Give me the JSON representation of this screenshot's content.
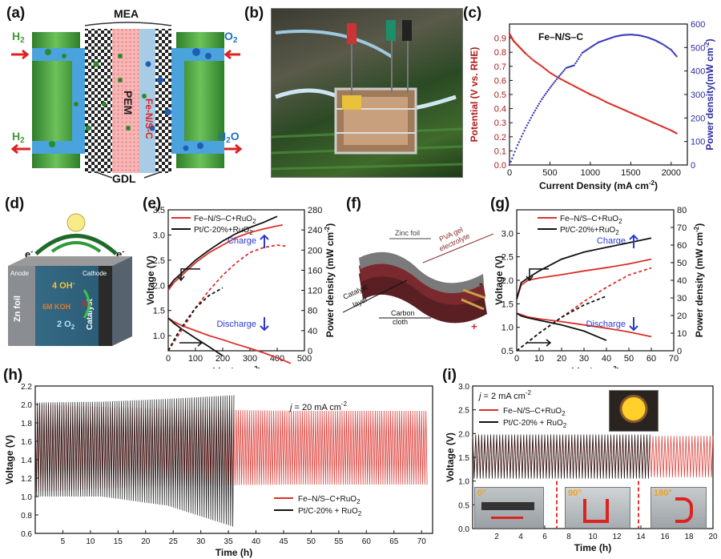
{
  "panels": {
    "a": {
      "label": "(a)",
      "mea": "MEA",
      "pem": "PEM",
      "catalyst": "Fe-N/S-C",
      "gdl": "GDL",
      "h2_in": "H",
      "h2_in_sub": "2",
      "h2_out": "H",
      "h2_out_sub": "2",
      "o2": "O",
      "o2_sub": "2",
      "h2o": "H",
      "h2o_sub": "2",
      "h2o_o": "O",
      "colors": {
        "green": "#3f9a34",
        "blue": "#4aa3dd",
        "pem": "#f29a9a",
        "red": "#d22"
      }
    },
    "b": {
      "label": "(b)"
    },
    "c": {
      "label": "(c)"
    },
    "d": {
      "label": "(d)",
      "anode": "Anode",
      "cathode": "Cathode",
      "zn_foil": "Zn foil",
      "oh": "4 OH",
      "oh_sup": "-",
      "koh": "6M KOH",
      "e_sym": "4e",
      "e_sym_sup": "-",
      "o2": "2 O",
      "o2_sub": "2",
      "catalyst": "Catalyst",
      "e_left": "e",
      "e_left_sup": "-",
      "e_right": "e",
      "e_right_sup": "-"
    },
    "e": {
      "label": "(e)"
    },
    "f": {
      "label": "(f)",
      "zinc_foil": "Zinc foil",
      "pva1": "PVA gel",
      "pva2": "electrolyte",
      "cat1": "Catalyst",
      "cat2": "layer",
      "carbon1": "Carbon",
      "carbon2": "cloth",
      "minus": "-",
      "plus": "+"
    },
    "g": {
      "label": "(g)"
    },
    "h": {
      "label": "(h)"
    },
    "i": {
      "label": "(i)",
      "angle0": "0°",
      "angle90": "90°",
      "angle180": "180°"
    }
  },
  "chart_data": [
    {
      "id": "c",
      "type": "line",
      "annotation": "Fe–N/S–C",
      "xlabel": "Current Density (mA cm",
      "xlabel_sup": "-2",
      "xlabel_end": ")",
      "ylabel": "Potential (V vs. RHE)",
      "y2label": "Power density(mW cm",
      "y2label_sup": "-2",
      "y2label_end": ")",
      "xlim": [
        0,
        2200
      ],
      "xticks": [
        0,
        500,
        1000,
        1500,
        2000
      ],
      "ylim": [
        0,
        1.0
      ],
      "yticks": [
        0.0,
        0.1,
        0.2,
        0.3,
        0.4,
        0.5,
        0.6,
        0.7,
        0.8,
        0.9
      ],
      "y2lim": [
        0,
        600
      ],
      "y2ticks": [
        0,
        100,
        200,
        300,
        400,
        500,
        600
      ],
      "series": [
        {
          "axis": "left",
          "color": "#d9302a",
          "x": [
            0,
            20,
            50,
            100,
            150,
            200,
            300,
            400,
            500,
            600,
            700,
            800,
            900,
            1000,
            1100,
            1200,
            1300,
            1400,
            1500,
            1600,
            1700,
            1800,
            1900,
            2000,
            2080
          ],
          "y": [
            0.93,
            0.91,
            0.88,
            0.85,
            0.82,
            0.79,
            0.74,
            0.7,
            0.655,
            0.62,
            0.59,
            0.56,
            0.53,
            0.5,
            0.475,
            0.445,
            0.42,
            0.395,
            0.37,
            0.345,
            0.32,
            0.295,
            0.27,
            0.245,
            0.22
          ]
        },
        {
          "axis": "right",
          "color": "#3a3bb8",
          "x": [
            0,
            100,
            200,
            300,
            400,
            500,
            600,
            700,
            800,
            900,
            1000,
            1100,
            1200,
            1300,
            1400,
            1500,
            1600,
            1700,
            1800,
            1900,
            2000,
            2080
          ],
          "y": [
            0,
            85,
            158,
            222,
            280,
            328,
            372,
            413,
            424,
            477,
            500,
            522,
            534,
            546,
            553,
            555,
            552,
            544,
            531,
            513,
            490,
            457
          ]
        }
      ]
    },
    {
      "id": "e",
      "type": "line",
      "xlabel": "j",
      "xlabel_unit": " (mA cm",
      "xlabel_sup": "-2",
      "xlabel_end": ")",
      "ylabel": "Voltage (V)",
      "y2label": "Power density (mW cm",
      "y2label_sup": "-2",
      "y2label_end": ")",
      "xlim": [
        0,
        500
      ],
      "xticks": [
        0,
        100,
        200,
        300,
        400,
        500
      ],
      "ylim": [
        0.7,
        3.5
      ],
      "yticks": [
        1.0,
        1.5,
        2.0,
        2.5,
        3.0,
        3.5
      ],
      "y2lim": [
        0,
        280
      ],
      "y2ticks": [
        0,
        40,
        80,
        120,
        160,
        200,
        240,
        280
      ],
      "legend": [
        "Fe–N/S–C+RuO",
        "Pt/C-20%+RuO"
      ],
      "legend_sub": "2",
      "charge_label": "Charge",
      "discharge_label": "Discharge",
      "series": [
        {
          "name": "Fe–N/S–C+RuO2",
          "color": "#d9302a",
          "dash": false,
          "x": [
            0,
            20,
            50,
            100,
            150,
            200,
            250,
            300,
            350,
            400,
            420
          ],
          "y": [
            1.9,
            2.05,
            2.2,
            2.45,
            2.65,
            2.8,
            2.95,
            3.05,
            3.12,
            3.18,
            3.2
          ]
        },
        {
          "name": "Pt/C-20%+RuO2",
          "color": "#111111",
          "dash": false,
          "x": [
            0,
            20,
            50,
            100,
            150,
            200,
            250,
            300,
            350,
            400
          ],
          "y": [
            1.95,
            2.1,
            2.25,
            2.5,
            2.7,
            2.88,
            3.03,
            3.15,
            3.25,
            3.37
          ]
        },
        {
          "name": "Fe discharge",
          "color": "#d9302a",
          "dash": false,
          "x": [
            0,
            20,
            50,
            100,
            150,
            200,
            250,
            300,
            350,
            400,
            450
          ],
          "y": [
            1.35,
            1.28,
            1.2,
            1.1,
            1.0,
            0.92,
            0.83,
            0.75,
            0.66,
            0.56,
            0.45
          ]
        },
        {
          "name": "Pt discharge",
          "color": "#111111",
          "dash": false,
          "x": [
            0,
            20,
            50,
            100,
            150,
            200
          ],
          "y": [
            1.35,
            1.25,
            1.13,
            0.95,
            0.78,
            0.6
          ]
        },
        {
          "name": "Fe power",
          "color": "#d9302a",
          "dash": true,
          "axis": "right",
          "x": [
            0,
            30,
            60,
            100,
            150,
            200,
            250,
            300,
            350,
            400,
            430
          ],
          "y": [
            0,
            25,
            50,
            85,
            120,
            150,
            175,
            195,
            205,
            210,
            208
          ]
        },
        {
          "name": "Pt power",
          "color": "#111111",
          "dash": true,
          "axis": "right",
          "x": [
            0,
            30,
            60,
            100,
            150,
            200
          ],
          "y": [
            0,
            30,
            55,
            85,
            110,
            125
          ]
        }
      ]
    },
    {
      "id": "g",
      "type": "line",
      "xlabel": "j",
      "xlabel_unit": " (mA cm",
      "xlabel_sup": "-2",
      "xlabel_end": ")",
      "ylabel": "Voltage (V)",
      "y2label": "Power density (mW cm",
      "y2label_sup": "-2",
      "y2label_end": ")",
      "xlim": [
        0,
        70
      ],
      "xticks": [
        0,
        10,
        20,
        30,
        40,
        50,
        60,
        70
      ],
      "ylim": [
        0.5,
        3.5
      ],
      "yticks": [
        0.5,
        1.0,
        1.5,
        2.0,
        2.5,
        3.0
      ],
      "y2lim": [
        0,
        80
      ],
      "y2ticks": [
        0,
        10,
        20,
        30,
        40,
        50,
        60,
        70,
        80
      ],
      "legend": [
        "Fe–N/S–C+RuO",
        "Pt/C-20%+RuO"
      ],
      "legend_sub": "2",
      "charge_label": "Charge",
      "discharge_label": "Discharge",
      "series": [
        {
          "name": "Fe charge",
          "color": "#d9302a",
          "dash": false,
          "x": [
            0,
            2,
            5,
            10,
            20,
            30,
            40,
            50,
            60
          ],
          "y": [
            1.6,
            1.9,
            2.0,
            2.05,
            2.12,
            2.2,
            2.27,
            2.35,
            2.45
          ]
        },
        {
          "name": "Pt charge",
          "color": "#111111",
          "dash": false,
          "x": [
            0,
            2,
            5,
            10,
            20,
            30,
            40,
            50,
            60
          ],
          "y": [
            1.6,
            1.95,
            2.05,
            2.2,
            2.45,
            2.6,
            2.7,
            2.8,
            2.9
          ]
        },
        {
          "name": "Fe discharge",
          "color": "#d9302a",
          "dash": false,
          "x": [
            0,
            2,
            5,
            10,
            20,
            30,
            40,
            50,
            60
          ],
          "y": [
            1.3,
            1.27,
            1.22,
            1.18,
            1.12,
            1.05,
            0.98,
            0.9,
            0.8
          ]
        },
        {
          "name": "Pt discharge",
          "color": "#111111",
          "dash": false,
          "x": [
            0,
            2,
            5,
            10,
            20,
            30,
            40
          ],
          "y": [
            1.3,
            1.24,
            1.2,
            1.15,
            1.05,
            0.92,
            0.72
          ]
        },
        {
          "name": "Fe power",
          "color": "#d9302a",
          "dash": true,
          "axis": "right",
          "x": [
            0,
            5,
            10,
            20,
            30,
            40,
            50,
            60
          ],
          "y": [
            0,
            5,
            10,
            19,
            28,
            36,
            43,
            47
          ]
        },
        {
          "name": "Pt power",
          "color": "#111111",
          "dash": true,
          "axis": "right",
          "x": [
            0,
            5,
            10,
            20,
            30,
            40
          ],
          "y": [
            0,
            5,
            10,
            19,
            26,
            31
          ]
        }
      ]
    },
    {
      "id": "h",
      "type": "line",
      "annotation_j": "j",
      "annotation": " = 20 mA cm",
      "annotation_sup": "-2",
      "xlabel": "Time (h)",
      "ylabel": "Voltage (V)",
      "xlim": [
        0,
        72
      ],
      "xticks": [
        5,
        10,
        15,
        20,
        25,
        30,
        35,
        40,
        45,
        50,
        55,
        60,
        65,
        70
      ],
      "ylim": [
        0.6,
        2.2
      ],
      "yticks": [
        0.6,
        0.8,
        1.0,
        1.2,
        1.4,
        1.6,
        1.8,
        2.0,
        2.2
      ],
      "legend": [
        "Fe–N/S–C+RuO",
        "Pt/C-20% + RuO"
      ],
      "legend_sub": "2",
      "series": [
        {
          "name": "Fe–N/S–C+RuO2",
          "color": "#d9302a",
          "t_end": 71,
          "top": [
            2.0,
            1.95,
            1.93,
            1.93
          ],
          "bottom": [
            1.05,
            1.12,
            1.13,
            1.13
          ]
        },
        {
          "name": "Pt/C-20% + RuO2",
          "color": "#111111",
          "t_end": 36,
          "top": [
            2.02,
            2.03,
            2.06,
            2.1
          ],
          "bottom": [
            1.0,
            1.0,
            0.9,
            0.67
          ]
        }
      ]
    },
    {
      "id": "i",
      "type": "line",
      "annotation_j": "j",
      "annotation": " = 2 mA cm",
      "annotation_sup": "-2",
      "xlabel": "Time (h)",
      "ylabel": "Voltage (V)",
      "xlim": [
        0,
        20
      ],
      "xticks": [
        2,
        4,
        6,
        8,
        10,
        12,
        14,
        16,
        18,
        20
      ],
      "ylim": [
        0.0,
        3.0
      ],
      "yticks": [
        0.0,
        0.5,
        1.0,
        1.5,
        2.0,
        2.5,
        3.0
      ],
      "legend": [
        "Fe–N/S–C+RuO",
        "Pt/C-20% + RuO"
      ],
      "legend_sub": "2",
      "series": [
        {
          "name": "Fe–N/S–C+RuO2",
          "color": "#d9302a",
          "t_end": 20,
          "top": [
            1.95,
            1.95
          ],
          "bottom": [
            1.08,
            1.08
          ]
        },
        {
          "name": "Pt/C-20% + RuO2",
          "color": "#111111",
          "t_end": 14.7,
          "top": [
            1.98,
            1.98
          ],
          "bottom": [
            1.05,
            1.05
          ]
        }
      ]
    }
  ]
}
